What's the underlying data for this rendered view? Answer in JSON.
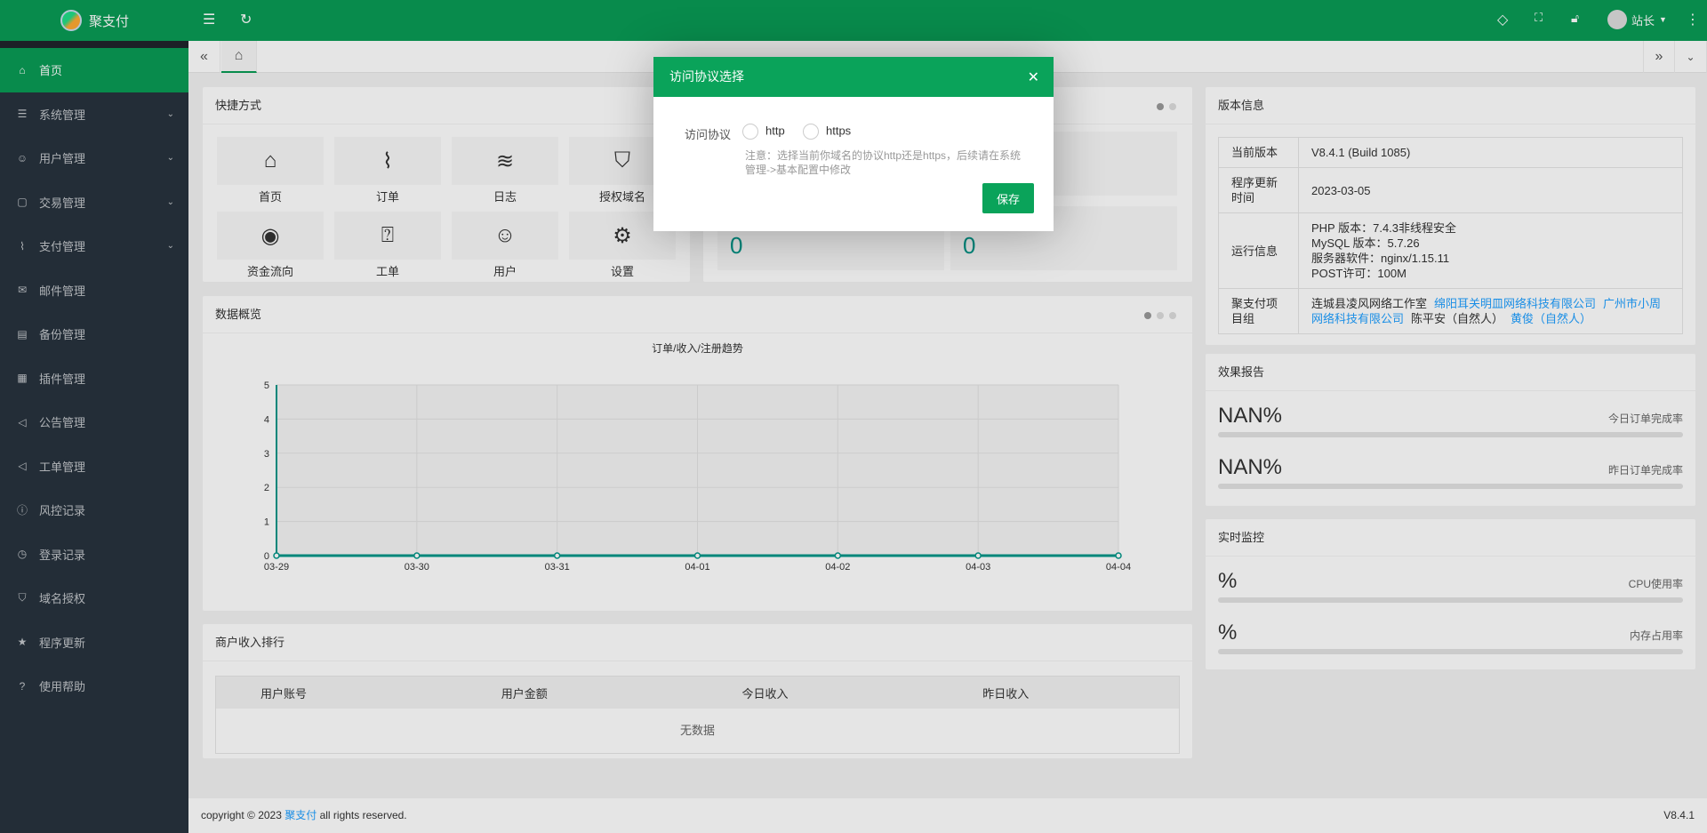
{
  "header": {
    "brand": "聚支付",
    "user": "站长"
  },
  "sidebar": {
    "items": [
      {
        "label": "首页",
        "icon": "home-icon",
        "active": true
      },
      {
        "label": "系统管理",
        "icon": "sliders-icon",
        "chevron": true
      },
      {
        "label": "用户管理",
        "icon": "user-icon",
        "chevron": true
      },
      {
        "label": "交易管理",
        "icon": "file-icon",
        "chevron": true
      },
      {
        "label": "支付管理",
        "icon": "pulse-icon",
        "chevron": true
      },
      {
        "label": "邮件管理",
        "icon": "mail-icon"
      },
      {
        "label": "备份管理",
        "icon": "note-icon"
      },
      {
        "label": "插件管理",
        "icon": "plugin-icon"
      },
      {
        "label": "公告管理",
        "icon": "speaker-icon"
      },
      {
        "label": "工单管理",
        "icon": "speaker-icon"
      },
      {
        "label": "风控记录",
        "icon": "info-icon"
      },
      {
        "label": "登录记录",
        "icon": "clock-icon"
      },
      {
        "label": "域名授权",
        "icon": "shield-icon"
      },
      {
        "label": "程序更新",
        "icon": "star-icon"
      },
      {
        "label": "使用帮助",
        "icon": "question-icon"
      }
    ]
  },
  "shortcuts": {
    "title": "快捷方式",
    "items": [
      {
        "label": "首页",
        "icon": "⌂"
      },
      {
        "label": "订单",
        "icon": "⌇"
      },
      {
        "label": "日志",
        "icon": "≋"
      },
      {
        "label": "授权域名",
        "icon": "⛉"
      },
      {
        "label": "资金流向",
        "icon": "◉"
      },
      {
        "label": "工单",
        "icon": "⍰"
      },
      {
        "label": "用户",
        "icon": "☺"
      },
      {
        "label": "设置",
        "icon": "⚙"
      }
    ]
  },
  "stats": {
    "values": [
      "0",
      "0"
    ]
  },
  "overview": {
    "title": "数据概览"
  },
  "chart_data": {
    "type": "line",
    "title": "订单/收入/注册趋势",
    "categories": [
      "03-29",
      "03-30",
      "03-31",
      "04-01",
      "04-02",
      "04-03",
      "04-04"
    ],
    "values": [
      0,
      0,
      0,
      0,
      0,
      0,
      0
    ],
    "ylim": [
      0,
      5
    ],
    "yticks": [
      "0",
      "1",
      "2",
      "3",
      "4",
      "5"
    ],
    "grid": true,
    "color": "#009688"
  },
  "ranking": {
    "title": "商户收入排行",
    "columns": [
      "用户账号",
      "用户金额",
      "今日收入",
      "昨日收入"
    ],
    "empty": "无数据"
  },
  "version": {
    "title": "版本信息",
    "rows": [
      {
        "k": "当前版本",
        "v": [
          "V8.4.1 (Build 1085)"
        ]
      },
      {
        "k": "程序更新时间",
        "v": [
          "2023-03-05"
        ]
      },
      {
        "k": "运行信息",
        "v": [
          "PHP 版本：7.4.3非线程安全",
          "MySQL 版本：5.7.26",
          "服务器软件：nginx/1.15.11",
          "POST许可：100M"
        ]
      }
    ],
    "team_label": "聚支付项目组",
    "team": [
      {
        "t": "连城县凌风网络工作室",
        "link": false
      },
      {
        "t": "绵阳耳关明皿网络科技有限公司",
        "link": true
      },
      {
        "t": "广州市小周网络科技有限公司",
        "link": true
      },
      {
        "t": "陈平安（自然人）",
        "link": false
      },
      {
        "t": "黄俊（自然人）",
        "link": true
      }
    ]
  },
  "report": {
    "title": "效果报告",
    "items": [
      {
        "value": "NAN%",
        "label": "今日订单完成率"
      },
      {
        "value": "NAN%",
        "label": "昨日订单完成率"
      }
    ]
  },
  "monitor": {
    "title": "实时监控",
    "items": [
      {
        "value": "%",
        "label": "CPU使用率"
      },
      {
        "value": "%",
        "label": "内存占用率"
      }
    ]
  },
  "footer": {
    "prefix": "copyright © 2023 ",
    "link": "聚支付",
    "suffix": " all rights reserved.",
    "version": "V8.4.1"
  },
  "modal": {
    "title": "访问协议选择",
    "field_label": "访问协议",
    "options": [
      "http",
      "https"
    ],
    "note": "注意：选择当前你域名的协议http还是https，后续请在系统管理->基本配置中修改",
    "save": "保存"
  }
}
